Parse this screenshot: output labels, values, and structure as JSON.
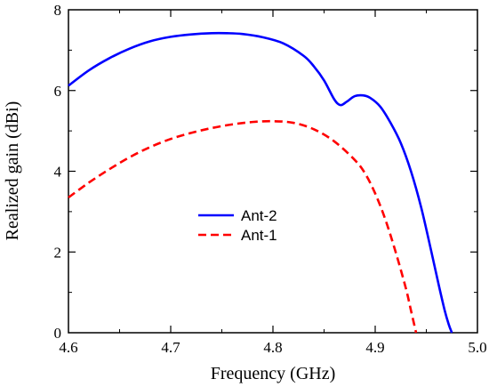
{
  "chart_data": {
    "type": "line",
    "xlabel": "Frequency (GHz)",
    "ylabel": "Realized gain (dBi)",
    "xlim": [
      4.6,
      5.0
    ],
    "ylim": [
      0,
      8
    ],
    "xticks": [
      "4.6",
      "4.7",
      "4.8",
      "4.9",
      "5.0"
    ],
    "yticks": [
      "0",
      "2",
      "4",
      "6",
      "8"
    ],
    "grid": false,
    "legend_position": "center-left",
    "series": [
      {
        "name": "Ant-2",
        "color": "#0000ff",
        "dash": "solid",
        "x": [
          4.6,
          4.62,
          4.64,
          4.66,
          4.68,
          4.7,
          4.72,
          4.74,
          4.755,
          4.77,
          4.79,
          4.81,
          4.83,
          4.84,
          4.85,
          4.86,
          4.866,
          4.872,
          4.88,
          4.888,
          4.895,
          4.905,
          4.915,
          4.925,
          4.935,
          4.945,
          4.955,
          4.962,
          4.968,
          4.972,
          4.975
        ],
        "values": [
          6.12,
          6.5,
          6.8,
          7.04,
          7.22,
          7.33,
          7.39,
          7.42,
          7.42,
          7.4,
          7.32,
          7.17,
          6.86,
          6.6,
          6.25,
          5.78,
          5.64,
          5.72,
          5.86,
          5.88,
          5.82,
          5.6,
          5.2,
          4.7,
          4.0,
          3.1,
          2.0,
          1.2,
          0.55,
          0.2,
          0.0
        ]
      },
      {
        "name": "Ant-1",
        "color": "#ff0000",
        "dash": "dashed",
        "x": [
          4.6,
          4.62,
          4.64,
          4.66,
          4.68,
          4.7,
          4.72,
          4.74,
          4.76,
          4.78,
          4.8,
          4.82,
          4.84,
          4.86,
          4.88,
          4.89,
          4.9,
          4.91,
          4.92,
          4.93,
          4.935,
          4.94
        ],
        "values": [
          3.35,
          3.72,
          4.05,
          4.35,
          4.6,
          4.8,
          4.95,
          5.07,
          5.16,
          5.22,
          5.24,
          5.2,
          5.04,
          4.74,
          4.28,
          3.95,
          3.45,
          2.8,
          2.0,
          1.1,
          0.55,
          0.0
        ]
      }
    ]
  }
}
